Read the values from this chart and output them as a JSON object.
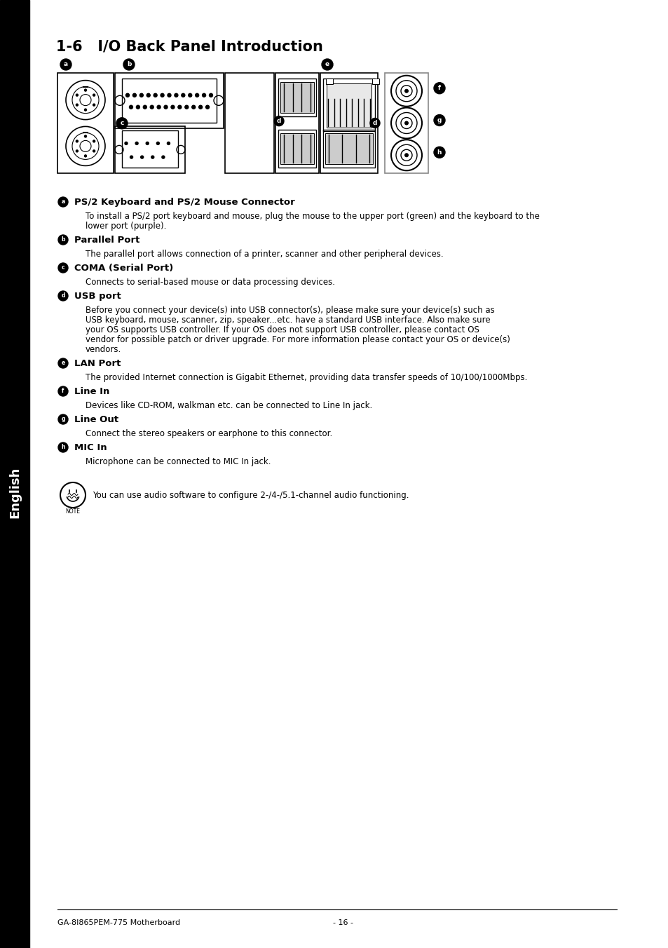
{
  "title": "1-6   I/O Back Panel Introduction",
  "sidebar_text": "English",
  "sidebar_bg": "#000000",
  "sidebar_text_color": "#ffffff",
  "page_bg": "#ffffff",
  "title_fontsize": 15,
  "body_fontsize": 8.5,
  "bold_fontsize": 9.5,
  "footer_left": "GA-8I865PEM-775 Motherboard",
  "footer_right": "- 16 -",
  "items": [
    {
      "label": "a",
      "bold": "PS/2 Keyboard and PS/2 Mouse Connector",
      "text": "To install a PS/2 port keyboard and mouse, plug the mouse to the upper port (green) and the keyboard to the\nlower port (purple)."
    },
    {
      "label": "b",
      "bold": "Parallel Port",
      "text": "The parallel port allows connection of a printer, scanner and other peripheral devices."
    },
    {
      "label": "c",
      "bold": "COMA (Serial Port)",
      "text": "Connects to serial-based mouse or data processing devices."
    },
    {
      "label": "d",
      "bold": "USB port",
      "text": "Before you connect your device(s) into USB connector(s), please make sure your device(s) such as\nUSB keyboard, mouse, scanner, zip, speaker...etc. have a standard USB interface. Also make sure\nyour OS supports USB controller. If your OS does not support USB controller, please contact OS\nvendor for possible patch or driver upgrade. For more information please contact your OS or device(s)\nvendors."
    },
    {
      "label": "e",
      "bold": "LAN Port",
      "text": "The provided Internet connection is Gigabit Ethernet, providing data transfer speeds of 10/100/1000Mbps."
    },
    {
      "label": "f",
      "bold": "Line In",
      "text": "Devices like CD-ROM, walkman etc. can be connected to Line In jack."
    },
    {
      "label": "g",
      "bold": "Line Out",
      "text": "Connect the stereo speakers or earphone to this connector."
    },
    {
      "label": "h",
      "bold": "MIC In",
      "text": "Microphone can be connected to MIC In jack."
    }
  ],
  "note_text": "You can use audio software to configure 2-/4-/5.1-channel audio functioning."
}
